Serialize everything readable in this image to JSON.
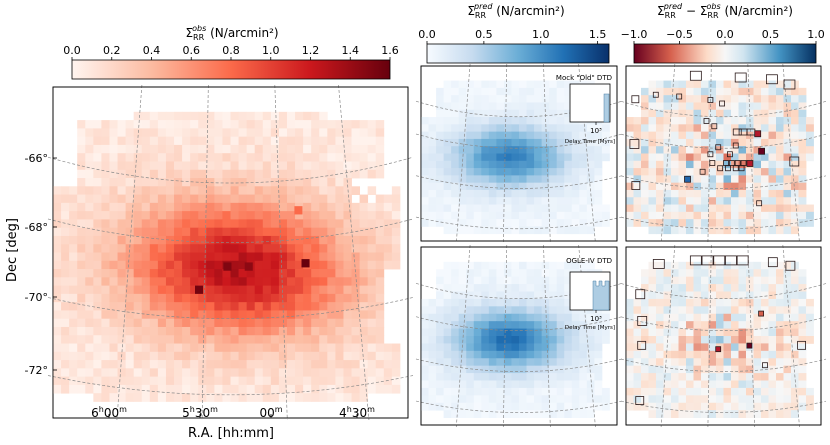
{
  "chart_data": [
    {
      "type": "heatmap",
      "panel": "observed",
      "title": "Σ_RR^obs (N/arcmin²)",
      "colorbar": {
        "colormap": "Reds",
        "range": [
          0.0,
          1.6
        ],
        "ticks": [
          "0.0",
          "0.2",
          "0.4",
          "0.6",
          "0.8",
          "1.0",
          "1.2",
          "1.4",
          "1.6"
        ]
      },
      "xlabel": "R.A. [hh:mm]",
      "ylabel": "Dec [deg]",
      "x_ticks": [
        {
          "h": "6",
          "m": "00",
          "label": "6h00m"
        },
        {
          "h": "5",
          "m": "30",
          "label": "5h30m"
        },
        {
          "h": "",
          "m": "00",
          "label": "00m"
        },
        {
          "h": "4",
          "m": "30",
          "label": "4h30m"
        }
      ],
      "y_ticks": [
        "-66°",
        "-68°",
        "-70°",
        "-72°"
      ],
      "peak_region": "ra≈5h20m, dec≈-69°"
    },
    {
      "type": "heatmap",
      "panel": "predicted-mock-old",
      "title": "Σ_RR^pred (N/arcmin²)",
      "colorbar": {
        "colormap": "Blues",
        "range": [
          0.0,
          1.6
        ],
        "ticks": [
          "0.0",
          "0.5",
          "1.0",
          "1.5"
        ]
      },
      "inset": {
        "label": "Mock \"Old\" DTD",
        "xtick": "10³",
        "xlabel": "Delay Time [Myrs]"
      }
    },
    {
      "type": "heatmap",
      "panel": "predicted-ogle",
      "inset": {
        "label": "OGLE-IV DTD",
        "xtick": "10³",
        "xlabel": "Delay Time [Myrs]"
      }
    },
    {
      "type": "heatmap",
      "panel": "residual",
      "title": "Σ_RR^pred − Σ_RR^obs (N/arcmin²)",
      "colorbar": {
        "colormap": "RdBu",
        "range": [
          -1.0,
          1.0
        ],
        "ticks": [
          "−1.0",
          "−0.5",
          "0.0",
          "0.5",
          "1.0"
        ]
      }
    }
  ],
  "labels": {
    "obs_title_sym": "Σ",
    "obs_title_sub": "RR",
    "obs_title_sup": "obs",
    "obs_title_unit": " (N/arcmin²)",
    "pred_title_sym": "Σ",
    "pred_title_sub": "RR",
    "pred_title_sup": "pred",
    "pred_title_unit": " (N/arcmin²)",
    "res_title_a": "Σ",
    "res_title_a_sub": "RR",
    "res_title_a_sup": "pred",
    "res_title_minus": " − Σ",
    "res_title_b_sub": "RR",
    "res_title_b_sup": "obs",
    "res_title_unit": " (N/arcmin²)",
    "xlabel": "R.A. [hh:mm]",
    "ylabel": "Dec [deg]",
    "inset1_label": "Mock \"Old\" DTD",
    "inset2_label": "OGLE-IV DTD",
    "inset_tick": "10³",
    "inset_xlabel": "Delay Time [Myrs]"
  }
}
